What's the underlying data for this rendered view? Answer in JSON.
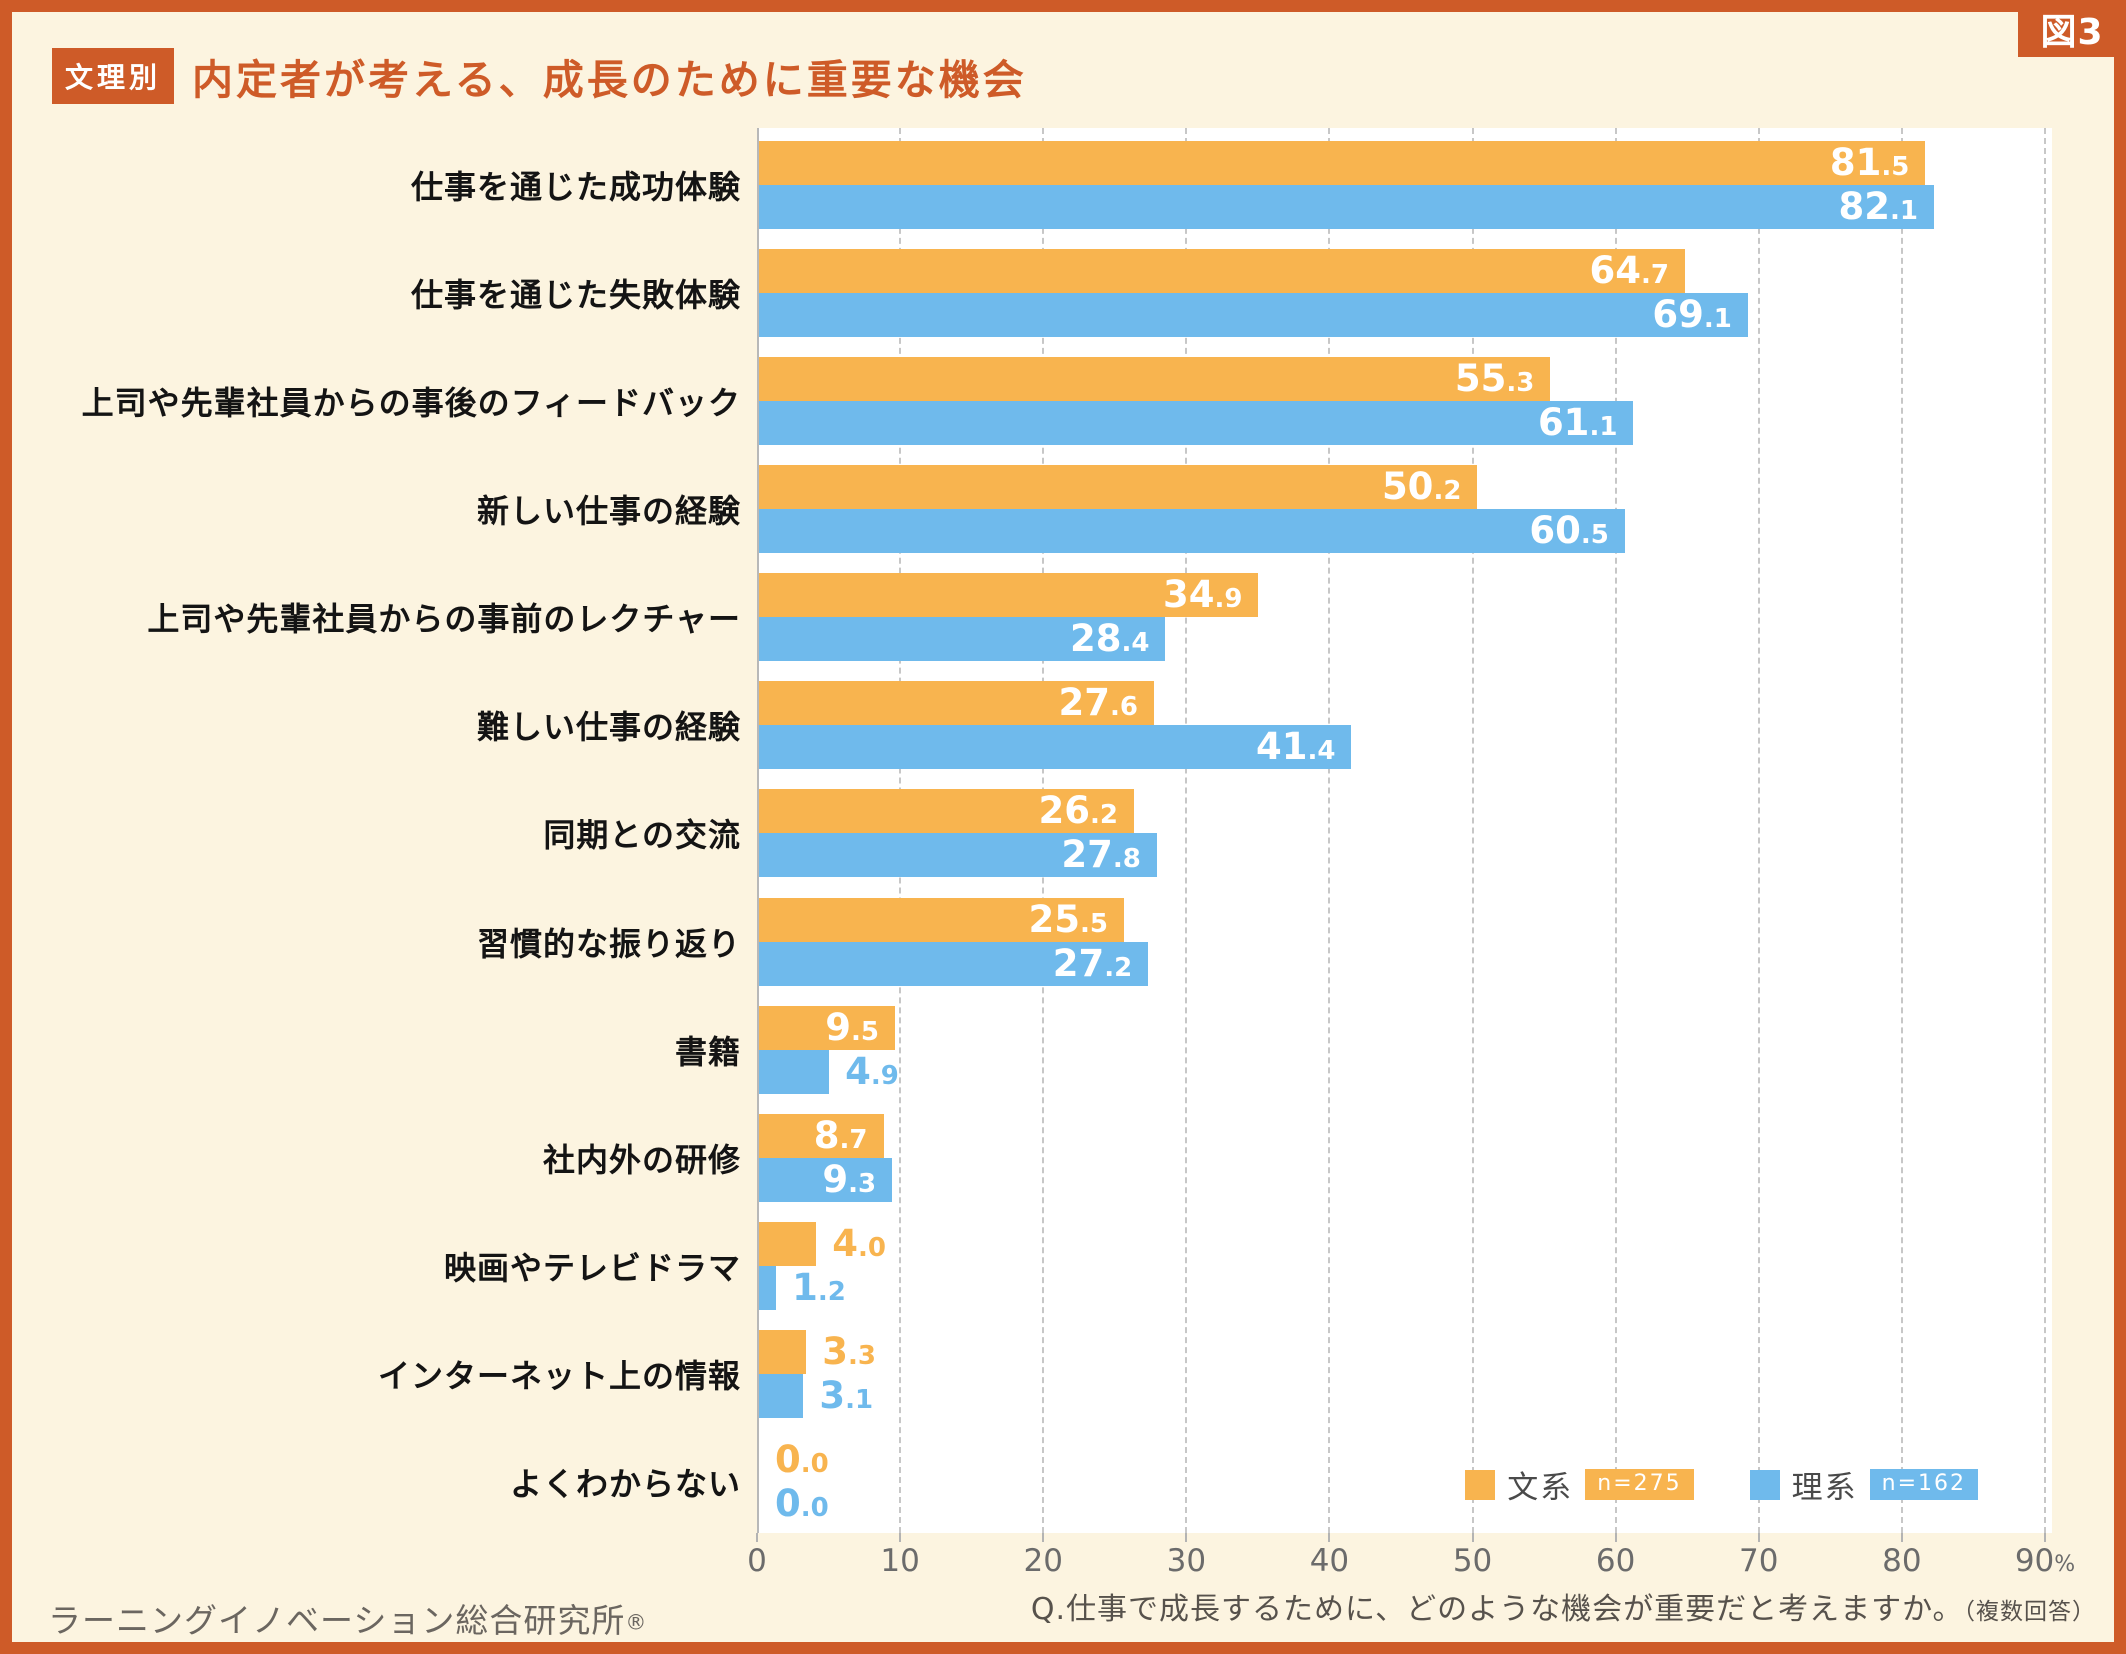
{
  "fig_label": "図3",
  "header": {
    "badge": "文理別",
    "title": "内定者が考える、成長のために重要な機会"
  },
  "legend": [
    {
      "label": "文系",
      "n_label": "n=275",
      "color": "#F8B44F"
    },
    {
      "label": "理系",
      "n_label": "n=162",
      "color": "#6FBAEC"
    }
  ],
  "question": "Q.仕事で成長するために、どのような機会が重要だと考えますか。",
  "question_note": "（複数回答）",
  "footer_source": "ラーニングイノベーション総合研究所",
  "footer_reg_mark": "®",
  "colors": {
    "frame_accent": "#CE5B28",
    "background_cream": "#FCF4E0",
    "bar_bunkei": "#F8B44F",
    "bar_rikei": "#6FBAEC",
    "plot_background": "#FFFFFF"
  },
  "chart_data": {
    "type": "bar",
    "orientation": "horizontal",
    "title": "内定者が考える、成長のために重要な機会",
    "categories": [
      "仕事を通じた成功体験",
      "仕事を通じた失敗体験",
      "上司や先輩社員からの事後のフィードバック",
      "新しい仕事の経験",
      "上司や先輩社員からの事前のレクチャー",
      "難しい仕事の経験",
      "同期との交流",
      "習慣的な振り返り",
      "書籍",
      "社内外の研修",
      "映画やテレビドラマ",
      "インターネット上の情報",
      "よくわからない"
    ],
    "series": [
      {
        "name": "文系",
        "n": 275,
        "color": "#F8B44F",
        "values": [
          81.5,
          64.7,
          55.3,
          50.2,
          34.9,
          27.6,
          26.2,
          25.5,
          9.5,
          8.7,
          4.0,
          3.3,
          0.0
        ]
      },
      {
        "name": "理系",
        "n": 162,
        "color": "#6FBAEC",
        "values": [
          82.1,
          69.1,
          61.1,
          60.5,
          28.4,
          41.4,
          27.8,
          27.2,
          4.9,
          9.3,
          1.2,
          3.1,
          0.0
        ]
      }
    ],
    "xlim": [
      0,
      90
    ],
    "ticks": [
      0,
      10,
      20,
      30,
      40,
      50,
      60,
      70,
      80,
      90
    ],
    "tick_suffix_last": "%",
    "grid": "dashed-vertical",
    "value_labels": "one-decimal",
    "legend_position": "bottom-right-inside"
  }
}
